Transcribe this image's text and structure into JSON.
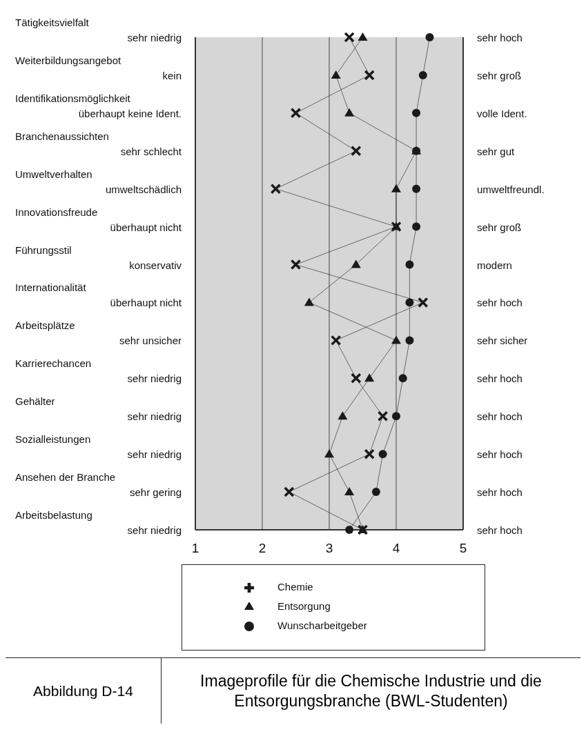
{
  "chart_data": {
    "type": "line",
    "title": "Imageprofile für die Chemische Industrie und die Entsorgungsbranche (BWL-Studenten)",
    "annotations": [
      "Abbildung D-14"
    ],
    "orientation": "horizontal",
    "categories": [
      "Tätigkeitsvielfalt\nsehr niedrig",
      "Weiterbildungsangebot\nkein",
      "Identifikationsmöglichkeit\nüberhaupt keine Ident.",
      "Branchenaussichten\nsehr schlecht",
      "Umweltverhalten\numweltschädlich",
      "Innovationsfreude\nüberhaupt nicht",
      "Führungsstil\nkonservativ",
      "Internationalität\nüberhaupt nicht",
      "Arbeitsplätze\nsehr unsicher",
      "Karrierechancen\nsehr niedrig",
      "Gehälter\nsehr niedrig",
      "Sozialleistungen\nsehr niedrig",
      "Ansehen der Branche\nsehr gering",
      "Arbeitsbelastung\nsehr niedrig"
    ],
    "y2_categories": [
      "sehr hoch",
      "sehr groß",
      "volle Ident.",
      "sehr gut",
      "umweltfreundl.",
      "sehr groß",
      "modern",
      "sehr hoch",
      "sehr sicher",
      "sehr hoch",
      "sehr hoch",
      "sehr hoch",
      "sehr hoch",
      "sehr hoch"
    ],
    "series": [
      {
        "name": "Chemie",
        "color": "#1a1a1a",
        "marker": "cross",
        "values": [
          3.3,
          3.6,
          2.5,
          3.4,
          2.2,
          4.0,
          2.5,
          4.4,
          3.1,
          3.4,
          3.8,
          3.6,
          2.4,
          3.5
        ]
      },
      {
        "name": "Entsorgung",
        "color": "#1a1a1a",
        "marker": "triangle",
        "values": [
          3.5,
          3.1,
          3.3,
          4.3,
          4.0,
          4.0,
          3.4,
          2.7,
          4.0,
          3.6,
          3.2,
          3.0,
          3.3,
          3.5
        ]
      },
      {
        "name": "Wunscharbeitgeber",
        "color": "#1a1a1a",
        "marker": "circle",
        "values": [
          4.5,
          4.4,
          4.3,
          4.3,
          4.3,
          4.3,
          4.2,
          4.2,
          4.2,
          4.1,
          4.0,
          3.8,
          3.7,
          3.3
        ]
      }
    ],
    "xlim": [
      1,
      5
    ],
    "xticks": [
      1,
      2,
      3,
      4,
      5
    ],
    "grid": "x",
    "legend": "bottom"
  }
}
